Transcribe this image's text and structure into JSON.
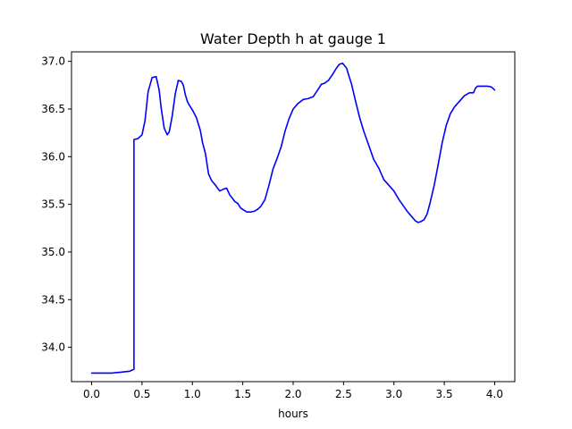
{
  "chart_data": {
    "type": "line",
    "title": "Water Depth h at gauge 1",
    "xlabel": "hours",
    "ylabel": "",
    "xlim": [
      -0.2,
      4.2
    ],
    "ylim": [
      33.64,
      37.1
    ],
    "xticks": [
      0.0,
      0.5,
      1.0,
      1.5,
      2.0,
      2.5,
      3.0,
      3.5,
      4.0
    ],
    "xtick_labels": [
      "0.0",
      "0.5",
      "1.0",
      "1.5",
      "2.0",
      "2.5",
      "3.0",
      "3.5",
      "4.0"
    ],
    "yticks": [
      34.0,
      34.5,
      35.0,
      35.5,
      36.0,
      36.5,
      37.0
    ],
    "ytick_labels": [
      "34.0",
      "34.5",
      "35.0",
      "35.5",
      "36.0",
      "36.5",
      "37.0"
    ],
    "grid": false,
    "legend": "none",
    "series": [
      {
        "color": "#0000ff",
        "x": [
          0.0,
          0.2,
          0.3,
          0.38,
          0.42,
          0.42,
          0.46,
          0.5,
          0.53,
          0.56,
          0.6,
          0.64,
          0.67,
          0.69,
          0.72,
          0.75,
          0.77,
          0.8,
          0.83,
          0.86,
          0.89,
          0.91,
          0.93,
          0.95,
          0.97,
          1.0,
          1.04,
          1.08,
          1.1,
          1.13,
          1.16,
          1.19,
          1.23,
          1.27,
          1.31,
          1.34,
          1.37,
          1.4,
          1.42,
          1.45,
          1.48,
          1.51,
          1.54,
          1.58,
          1.62,
          1.65,
          1.68,
          1.72,
          1.76,
          1.8,
          1.84,
          1.88,
          1.92,
          1.96,
          2.0,
          2.05,
          2.1,
          2.15,
          2.2,
          2.25,
          2.28,
          2.31,
          2.35,
          2.39,
          2.43,
          2.46,
          2.49,
          2.53,
          2.55,
          2.58,
          2.62,
          2.66,
          2.7,
          2.75,
          2.8,
          2.85,
          2.9,
          2.95,
          3.0,
          3.05,
          3.09,
          3.13,
          3.17,
          3.21,
          3.24,
          3.27,
          3.3,
          3.33,
          3.36,
          3.4,
          3.44,
          3.48,
          3.52,
          3.56,
          3.6,
          3.65,
          3.7,
          3.75,
          3.79,
          3.81,
          3.83,
          3.88,
          3.93,
          3.97,
          4.0
        ],
        "y": [
          33.73,
          33.73,
          33.74,
          33.75,
          33.77,
          36.18,
          36.19,
          36.23,
          36.38,
          36.68,
          36.83,
          36.84,
          36.7,
          36.51,
          36.3,
          36.23,
          36.26,
          36.43,
          36.66,
          36.8,
          36.79,
          36.75,
          36.65,
          36.58,
          36.54,
          36.49,
          36.41,
          36.27,
          36.15,
          36.03,
          35.82,
          35.75,
          35.7,
          35.64,
          35.66,
          35.67,
          35.6,
          35.56,
          35.53,
          35.51,
          35.46,
          35.44,
          35.42,
          35.42,
          35.43,
          35.45,
          35.48,
          35.55,
          35.7,
          35.87,
          35.98,
          36.1,
          36.27,
          36.4,
          36.5,
          36.56,
          36.6,
          36.61,
          36.63,
          36.71,
          36.76,
          36.77,
          36.8,
          36.86,
          36.93,
          36.97,
          36.98,
          36.93,
          36.86,
          36.76,
          36.58,
          36.41,
          36.27,
          36.12,
          35.97,
          35.88,
          35.76,
          35.7,
          35.64,
          35.55,
          35.49,
          35.43,
          35.38,
          35.33,
          35.31,
          35.32,
          35.34,
          35.4,
          35.52,
          35.7,
          35.92,
          36.15,
          36.33,
          36.45,
          36.52,
          36.58,
          36.64,
          36.67,
          36.67,
          36.72,
          36.74,
          36.74,
          36.74,
          36.73,
          36.7
        ]
      }
    ]
  }
}
